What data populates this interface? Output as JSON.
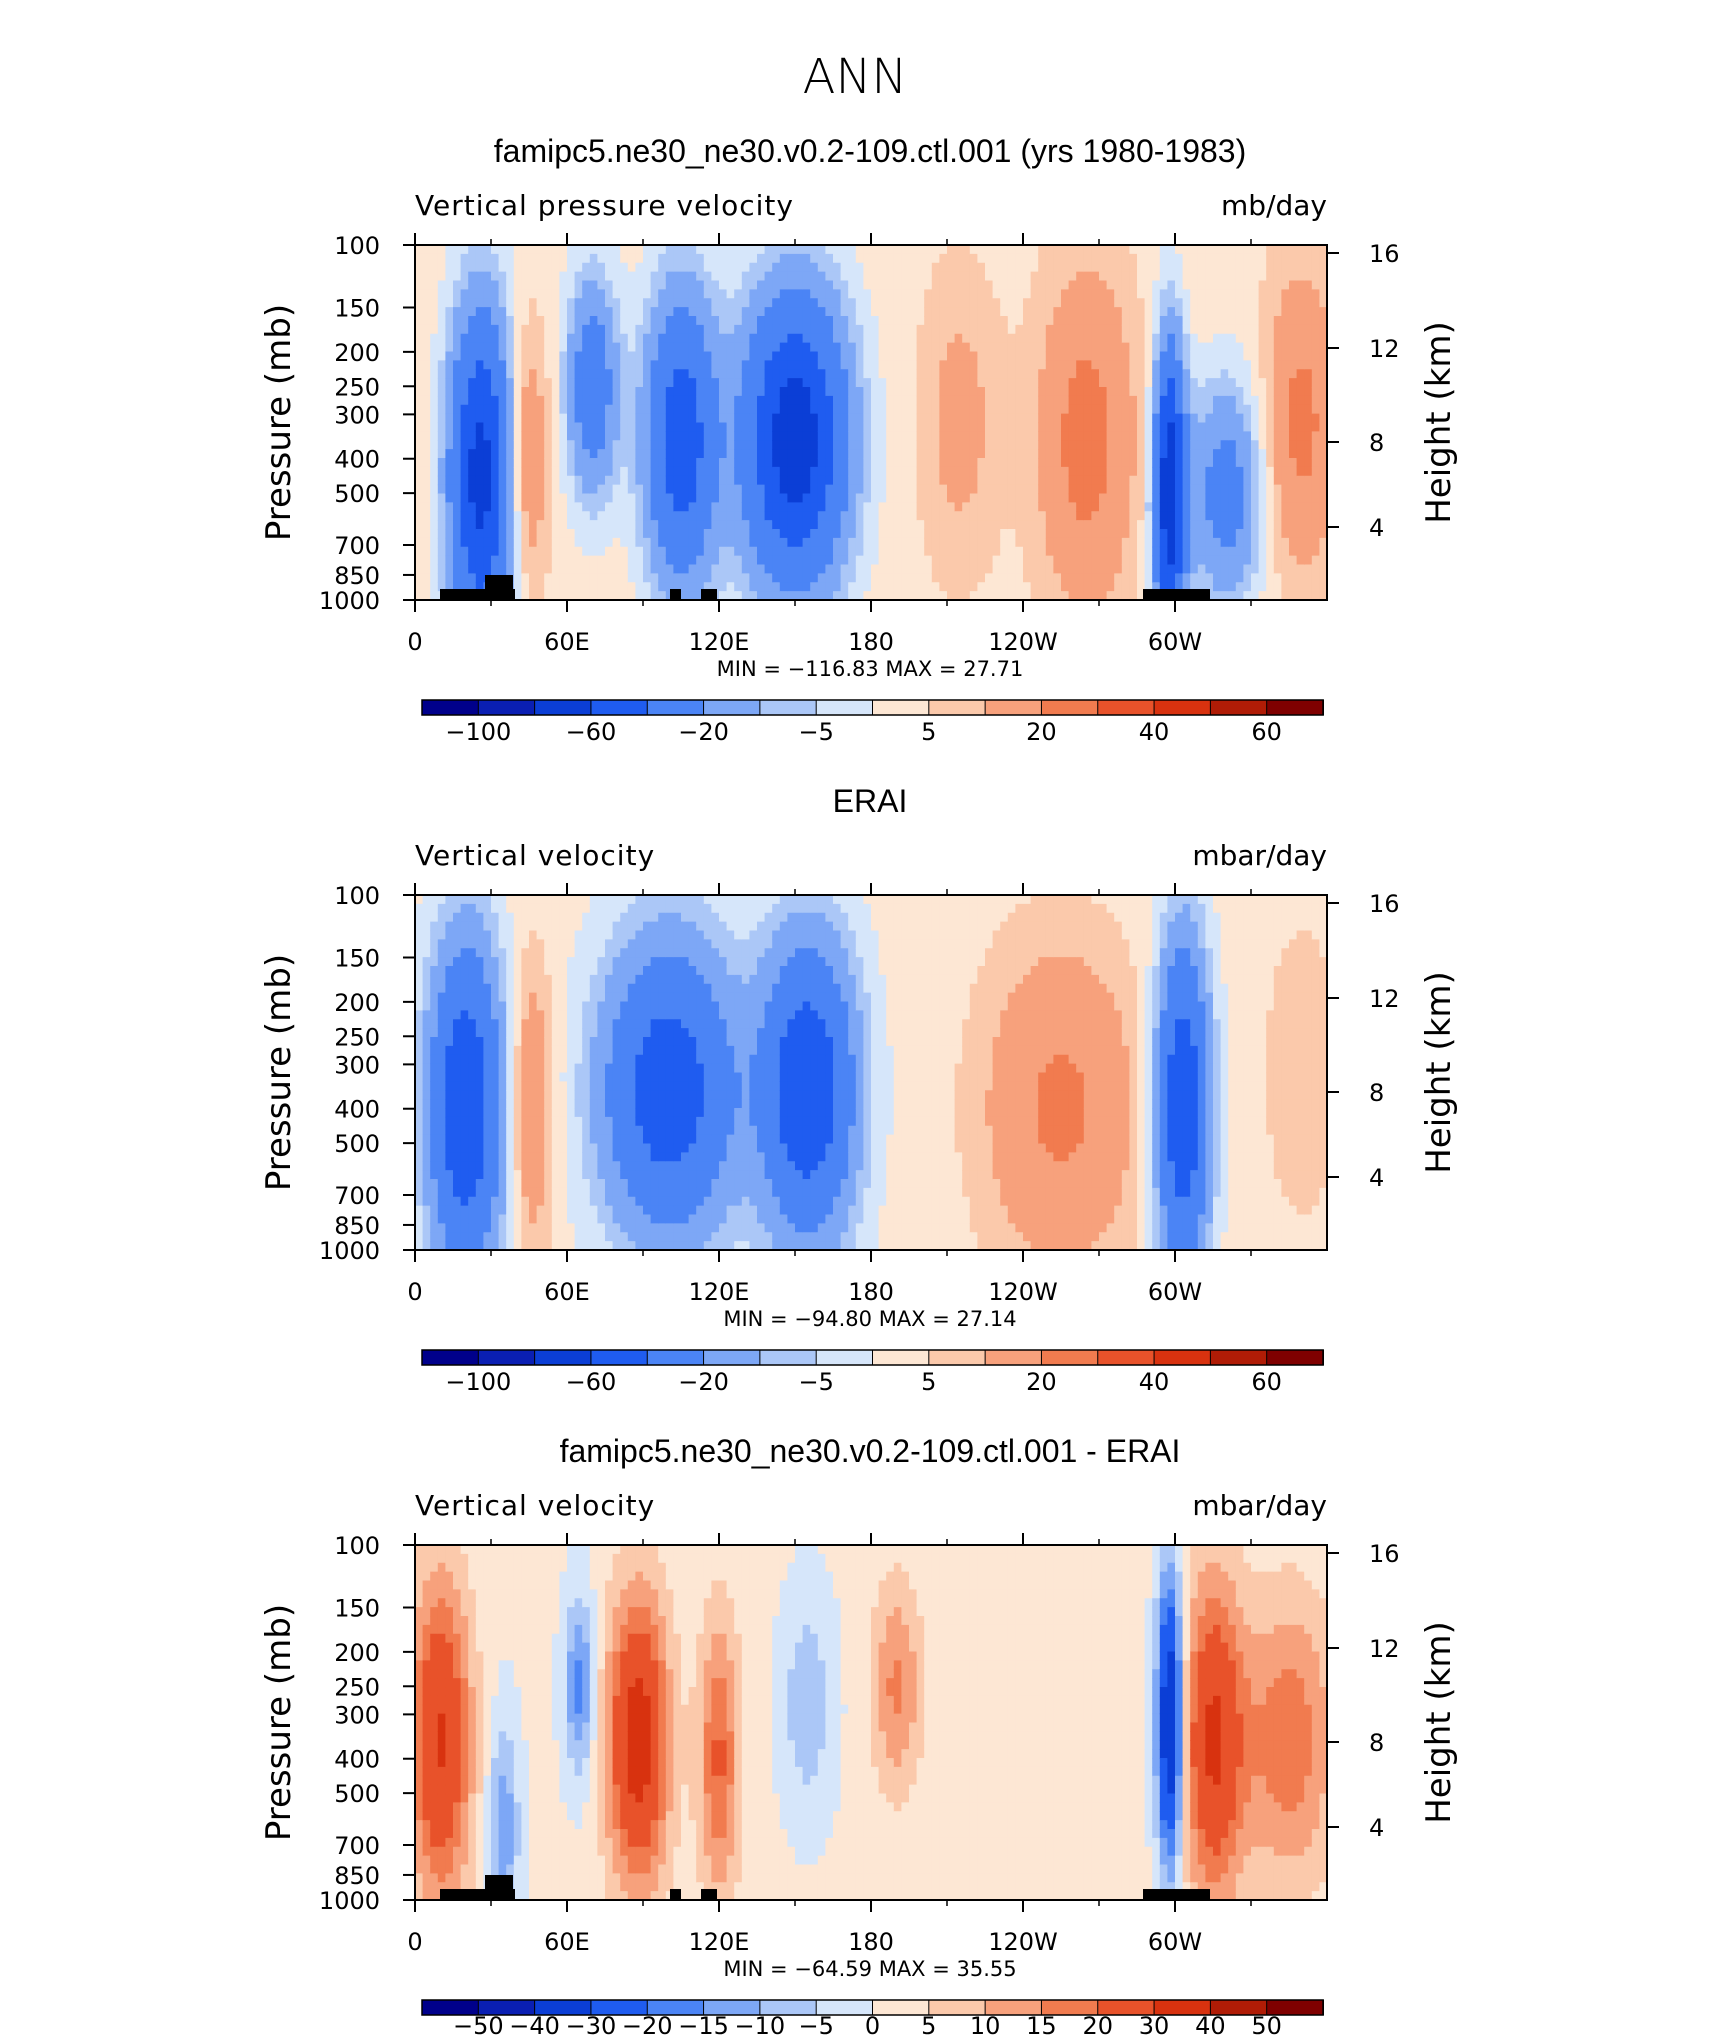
{
  "figure_title": "ANN",
  "colors": {
    "seq1": [
      "#00008b",
      "#0a1fb3",
      "#0b3ed6",
      "#1f5cf0",
      "#4b84f5",
      "#7da7f6",
      "#abc7f7",
      "#d6e6fa",
      "#fde7d4",
      "#fbc9ab",
      "#f7a17c",
      "#f17b4f",
      "#e8522a",
      "#d8320f",
      "#b01c06",
      "#7f0000"
    ],
    "seq2": [
      "#00008b",
      "#0a1fb3",
      "#0b3ed6",
      "#1f5cf0",
      "#4b84f5",
      "#7da7f6",
      "#abc7f7",
      "#d6e6fa",
      "#fde7d4",
      "#fbc9ab",
      "#f7a17c",
      "#f17b4f",
      "#e8522a",
      "#d8320f",
      "#b01c06",
      "#7f0000"
    ],
    "land": "#000000"
  },
  "chart_data": [
    {
      "type": "heatmap",
      "title": "famipc5.ne30_ne30.v0.2-109.ctl.001 (yrs 1980-1983)",
      "left_label": "Vertical pressure velocity",
      "right_label": "mb/day",
      "ylabel": "Pressure (mb)",
      "ylabel_right": "Height (km)",
      "xticks": [
        "0",
        "60E",
        "120E",
        "180",
        "120W",
        "60W"
      ],
      "yticks": [
        "100",
        "150",
        "200",
        "250",
        "300",
        "400",
        "500",
        "700",
        "850",
        "1000"
      ],
      "yticks_right": [
        "16",
        "12",
        "8",
        "4"
      ],
      "minmax": "MIN = −116.83   MAX =  27.71",
      "levels": [
        "−100",
        "−60",
        "−20",
        "−5",
        "5",
        "20",
        "40",
        "60"
      ],
      "min": -116.83,
      "max": 27.71
    },
    {
      "type": "heatmap",
      "title": "ERAI",
      "left_label": "Vertical velocity",
      "right_label": "mbar/day",
      "ylabel": "Pressure (mb)",
      "ylabel_right": "Height (km)",
      "xticks": [
        "0",
        "60E",
        "120E",
        "180",
        "120W",
        "60W"
      ],
      "yticks": [
        "100",
        "150",
        "200",
        "250",
        "300",
        "400",
        "500",
        "700",
        "850",
        "1000"
      ],
      "yticks_right": [
        "16",
        "12",
        "8",
        "4"
      ],
      "minmax": "MIN = −94.80   MAX =  27.14",
      "levels": [
        "−100",
        "−60",
        "−20",
        "−5",
        "5",
        "20",
        "40",
        "60"
      ],
      "min": -94.8,
      "max": 27.14
    },
    {
      "type": "heatmap",
      "title": "famipc5.ne30_ne30.v0.2-109.ctl.001 - ERAI",
      "left_label": "Vertical velocity",
      "right_label": "mbar/day",
      "ylabel": "Pressure (mb)",
      "ylabel_right": "Height (km)",
      "xticks": [
        "0",
        "60E",
        "120E",
        "180",
        "120W",
        "60W"
      ],
      "yticks": [
        "100",
        "150",
        "200",
        "250",
        "300",
        "400",
        "500",
        "700",
        "850",
        "1000"
      ],
      "yticks_right": [
        "16",
        "12",
        "8",
        "4"
      ],
      "minmax": "MIN = −64.59   MAX =  35.55",
      "levels": [
        "−50",
        "−40",
        "−30",
        "−20",
        "−15",
        "−10",
        "−5",
        "0",
        "5",
        "10",
        "15",
        "20",
        "30",
        "40",
        "50"
      ],
      "min": -64.59,
      "max": 35.55
    }
  ]
}
